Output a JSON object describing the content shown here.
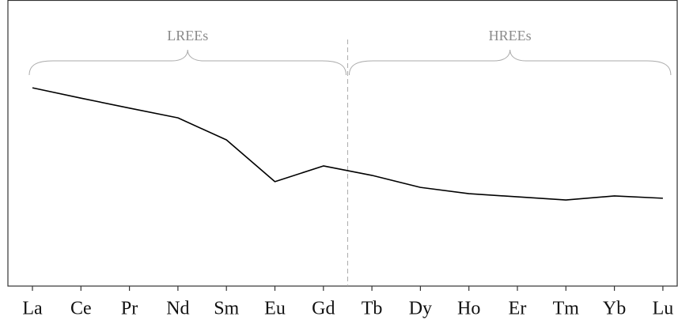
{
  "chart_data": {
    "type": "line",
    "categories": [
      "La",
      "Ce",
      "Pr",
      "Nd",
      "Sm",
      "Eu",
      "Gd",
      "Tb",
      "Dy",
      "Ho",
      "Er",
      "Tm",
      "Yb",
      "Lu"
    ],
    "values": [
      69.3,
      65.7,
      62.2,
      58.8,
      51.1,
      36.5,
      42.0,
      38.7,
      34.5,
      32.3,
      31.2,
      30.1,
      31.5,
      30.7
    ],
    "color": "#000000",
    "ylim": [
      0,
      100
    ],
    "grid": false,
    "annotations": [
      "LREEs",
      "HREEs"
    ]
  }
}
